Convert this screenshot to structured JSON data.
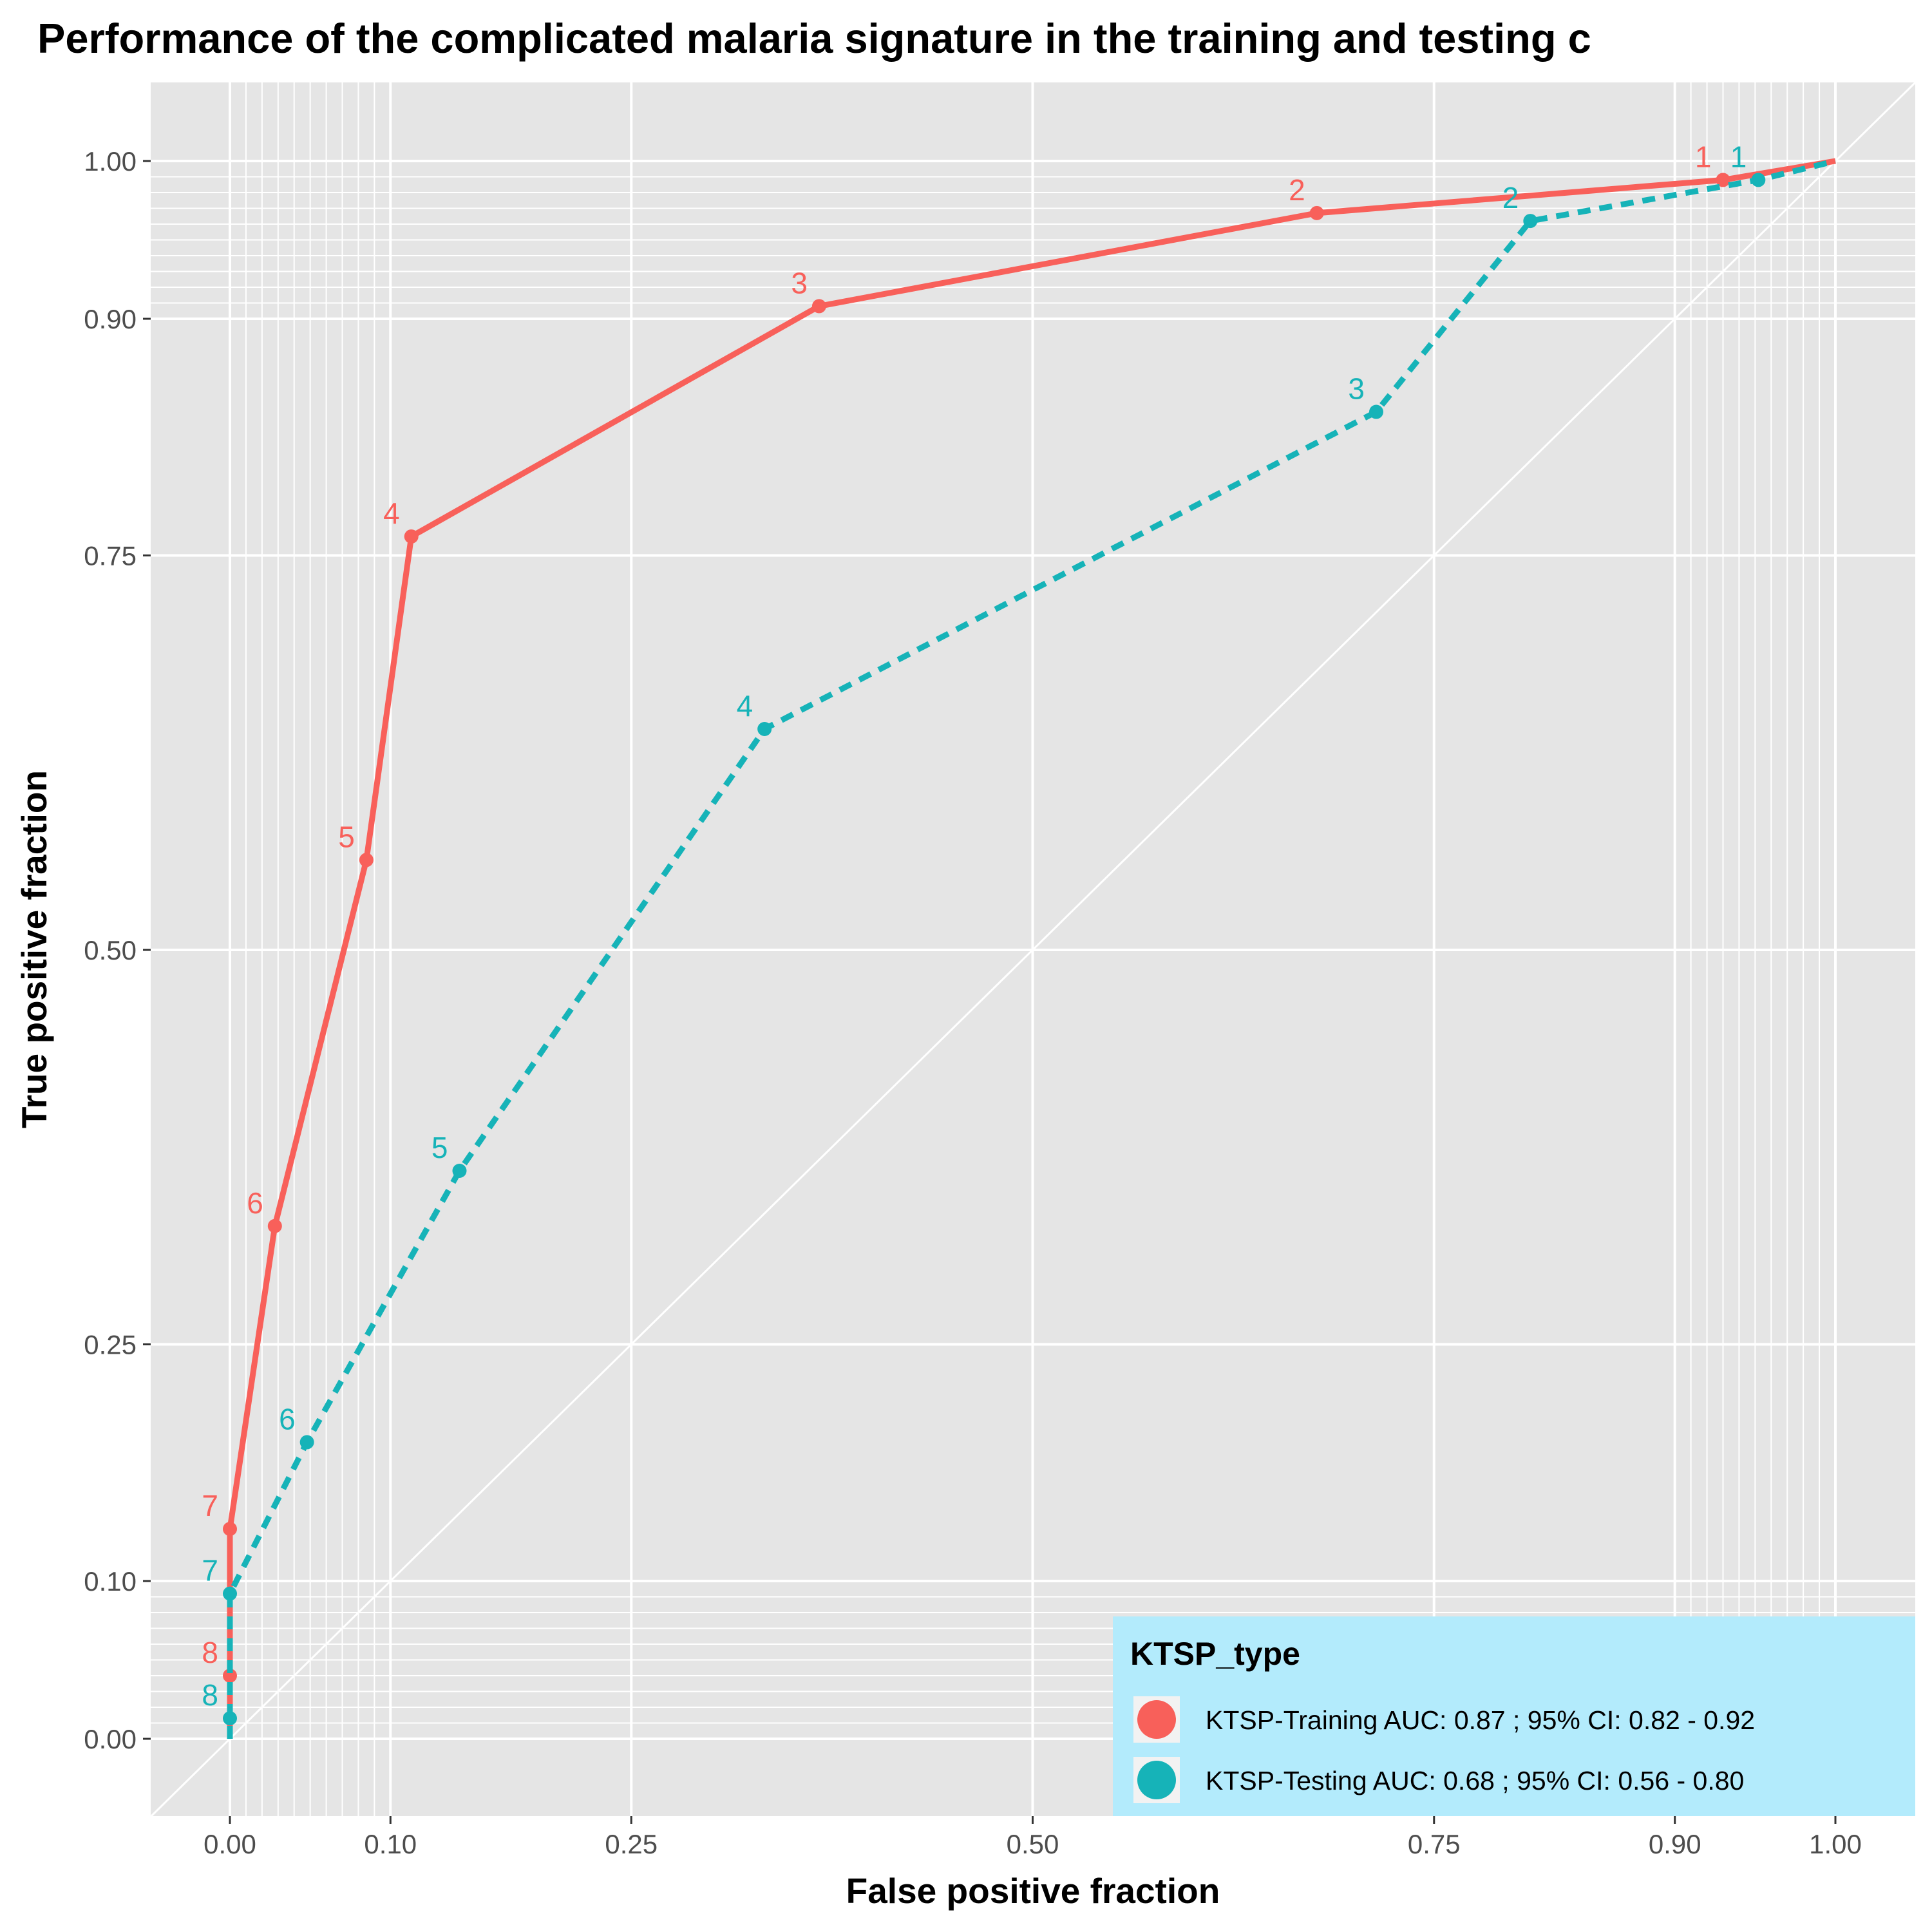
{
  "chart_data": {
    "type": "line",
    "title": "Performance of the complicated malaria signature in the training and testing c",
    "xlabel": "False positive fraction",
    "ylabel": "True positive fraction",
    "xlim": [
      -0.05,
      1.05
    ],
    "ylim": [
      -0.05,
      1.05
    ],
    "x_breaks": [
      0,
      0.1,
      0.25,
      0.5,
      0.75,
      0.9,
      1
    ],
    "x_tick_labels": [
      "0.00",
      "0.10",
      "0.25",
      "0.50",
      "0.75",
      "0.90",
      "1.00"
    ],
    "y_breaks": [
      0,
      0.1,
      0.25,
      0.5,
      0.75,
      0.9,
      1
    ],
    "y_tick_labels": [
      "0.00",
      "0.10",
      "0.25",
      "0.50",
      "0.75",
      "0.90",
      "1.00"
    ],
    "minor_breaks": [
      0.01,
      0.02,
      0.03,
      0.04,
      0.05,
      0.06,
      0.07,
      0.08,
      0.09,
      0.91,
      0.92,
      0.93,
      0.94,
      0.95,
      0.96,
      0.97,
      0.98,
      0.99
    ],
    "grid": true,
    "background": "#e5e5e5",
    "reference_line": {
      "from": [
        0,
        0
      ],
      "to": [
        1,
        1
      ],
      "color": "#ffffff"
    },
    "series": [
      {
        "name": "KTSP-Training AUC:  0.87 ; 95% CI:  0.82 - 0.92",
        "color": "#f8605a",
        "linestyle": "solid",
        "x": [
          0,
          0,
          0,
          0,
          0.028,
          0.085,
          0.113,
          0.367,
          0.677,
          0.93,
          1
        ],
        "y": [
          0,
          0.04,
          0.133,
          0.133,
          0.325,
          0.557,
          0.762,
          0.908,
          0.967,
          0.988,
          1
        ],
        "points": [
          {
            "label": "8",
            "x": 0,
            "y": 0.04
          },
          {
            "label": "7",
            "x": 0,
            "y": 0.133
          },
          {
            "label": "6",
            "x": 0.028,
            "y": 0.325
          },
          {
            "label": "5",
            "x": 0.085,
            "y": 0.557
          },
          {
            "label": "4",
            "x": 0.113,
            "y": 0.762
          },
          {
            "label": "3",
            "x": 0.367,
            "y": 0.908
          },
          {
            "label": "2",
            "x": 0.677,
            "y": 0.967
          },
          {
            "label": "1",
            "x": 0.93,
            "y": 0.988
          }
        ]
      },
      {
        "name": "KTSP-Testing AUC:  0.68 ; 95% CI:  0.56 - 0.80",
        "color": "#16b3b8",
        "linestyle": "dashed",
        "x": [
          0,
          0,
          0,
          0.048,
          0.143,
          0.333,
          0.714,
          0.81,
          0.952,
          1
        ],
        "y": [
          0,
          0.013,
          0.092,
          0.188,
          0.36,
          0.64,
          0.841,
          0.962,
          0.988,
          1
        ],
        "points": [
          {
            "label": "8",
            "x": 0,
            "y": 0.013
          },
          {
            "label": "7",
            "x": 0,
            "y": 0.092
          },
          {
            "label": "6",
            "x": 0.048,
            "y": 0.188
          },
          {
            "label": "5",
            "x": 0.143,
            "y": 0.36
          },
          {
            "label": "4",
            "x": 0.333,
            "y": 0.64
          },
          {
            "label": "3",
            "x": 0.714,
            "y": 0.841
          },
          {
            "label": "2",
            "x": 0.81,
            "y": 0.962
          },
          {
            "label": "1",
            "x": 0.952,
            "y": 0.988
          }
        ]
      }
    ],
    "legend": {
      "title": "KTSP_type",
      "position": "bottom-right",
      "background": "#b3ebfc"
    }
  }
}
